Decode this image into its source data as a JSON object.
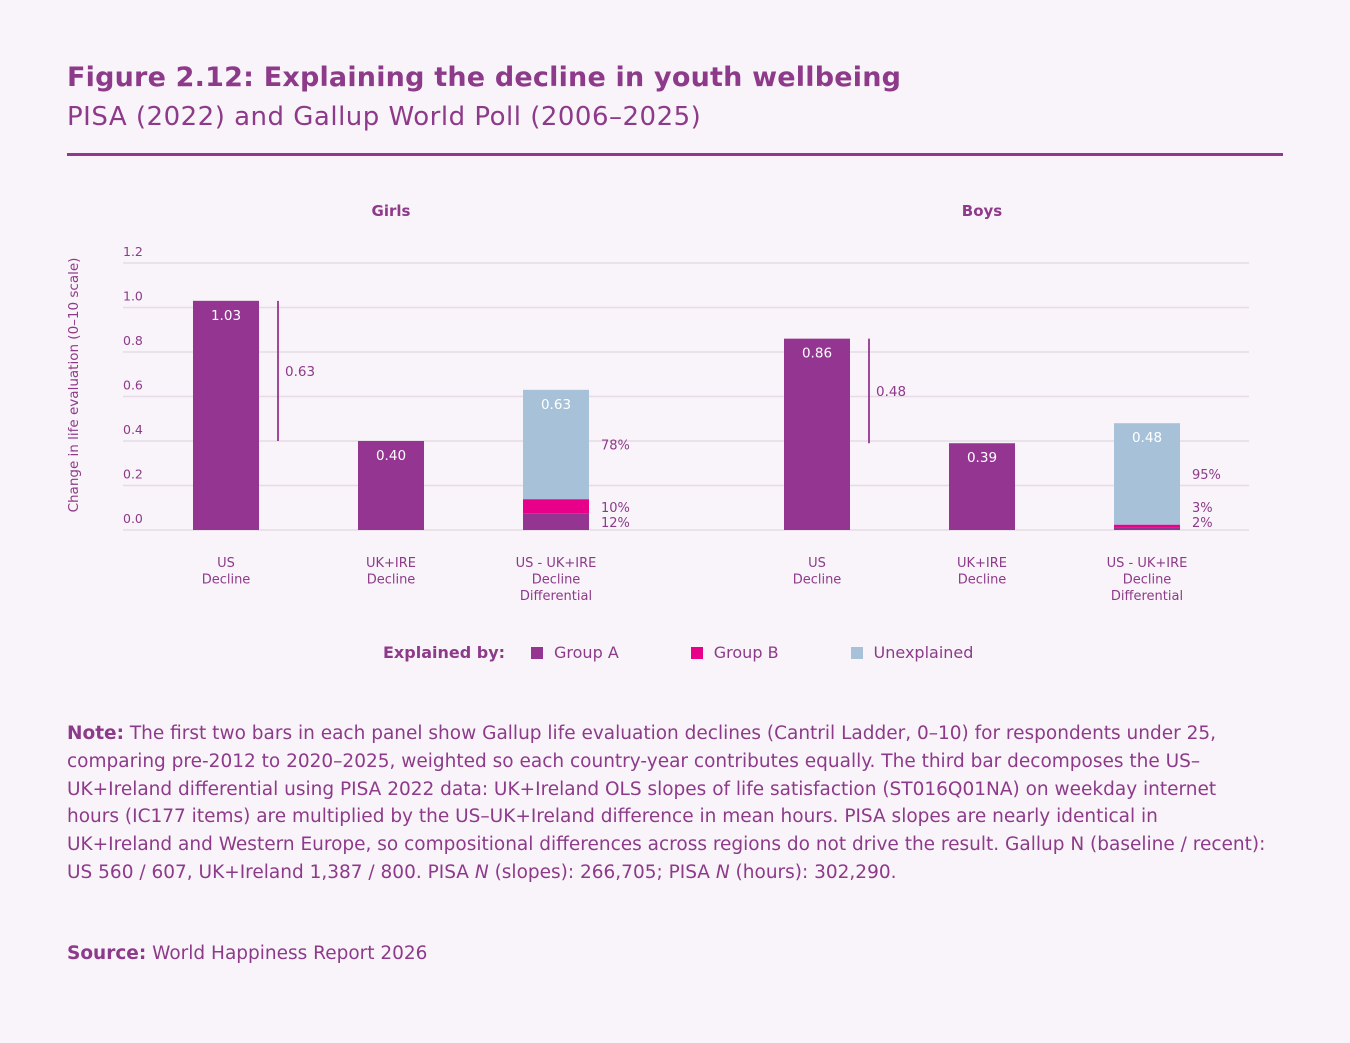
{
  "header": {
    "title": "Figure 2.12: Explaining the decline in youth wellbeing",
    "subtitle": "PISA (2022) and Gallup World Poll (2006–2025)"
  },
  "colors": {
    "group_a": "#953592",
    "group_b": "#e8008a",
    "unexplained": "#a7c2d8",
    "text": "#8e3a8a",
    "grid": "#e6dbe6"
  },
  "chart_data": {
    "type": "bar",
    "ylabel": "Change in life evaluation (0–10 scale)",
    "ylim": [
      0,
      1.2
    ],
    "yticks": [
      "0.0",
      "0.2",
      "0.4",
      "0.6",
      "0.8",
      "1.0",
      "1.2"
    ],
    "grid": true,
    "legend_placement": "bottom",
    "legend": {
      "title": "Explained by:",
      "entries": [
        "Group A",
        "Group B",
        "Unexplained"
      ]
    },
    "panels": [
      {
        "title": "Girls",
        "bars": [
          {
            "category": "US\nDecline",
            "value": 1.03,
            "label": "1.03",
            "type": "simple"
          },
          {
            "category": "UK+IRE\nDecline",
            "value": 0.4,
            "label": "0.40",
            "type": "simple"
          },
          {
            "category": "US - UK+IRE\nDecline\nDifferential",
            "value": 0.63,
            "label": "0.63",
            "type": "stacked",
            "segments": [
              {
                "name": "Group A",
                "share_pct": 12,
                "label": "12%"
              },
              {
                "name": "Group B",
                "share_pct": 10,
                "label": "10%"
              },
              {
                "name": "Unexplained",
                "share_pct": 78,
                "label": "78%"
              }
            ]
          }
        ],
        "differential_bracket": {
          "from": 0.4,
          "to": 1.03,
          "label": "0.63"
        }
      },
      {
        "title": "Boys",
        "bars": [
          {
            "category": "US\nDecline",
            "value": 0.86,
            "label": "0.86",
            "type": "simple"
          },
          {
            "category": "UK+IRE\nDecline",
            "value": 0.39,
            "label": "0.39",
            "type": "simple"
          },
          {
            "category": "US - UK+IRE\nDecline\nDifferential",
            "value": 0.48,
            "label": "0.48",
            "type": "stacked",
            "segments": [
              {
                "name": "Group A",
                "share_pct": 2,
                "label": "2%"
              },
              {
                "name": "Group B",
                "share_pct": 3,
                "label": "3%"
              },
              {
                "name": "Unexplained",
                "share_pct": 95,
                "label": "95%"
              }
            ]
          }
        ],
        "differential_bracket": {
          "from": 0.39,
          "to": 0.86,
          "label": "0.48"
        }
      }
    ]
  },
  "note": {
    "label": "Note:",
    "text": " The first two bars in each panel show Gallup life evaluation declines (Cantril Ladder, 0–10) for respondents under 25, comparing pre-2012 to 2020–2025, weighted so each country-year contributes equally. The third bar decomposes the US–UK+Ireland differential using PISA 2022 data: UK+Ireland OLS slopes of life satisfaction (ST016Q01NA) on weekday internet hours (IC177 items) are multiplied by the US–UK+Ireland difference in mean hours. PISA slopes are nearly identical in UK+Ireland and Western Europe, so compositional differences across regions do not drive the result. Gallup N (baseline / recent): US 560 / 607, UK+Ireland 1,387 / 800. PISA ",
    "italic_n": "N",
    "text2": " (slopes): 266,705; PISA ",
    "text3": " (hours): 302,290."
  },
  "source": {
    "label": "Source:",
    "text": " World Happiness Report 2026"
  }
}
